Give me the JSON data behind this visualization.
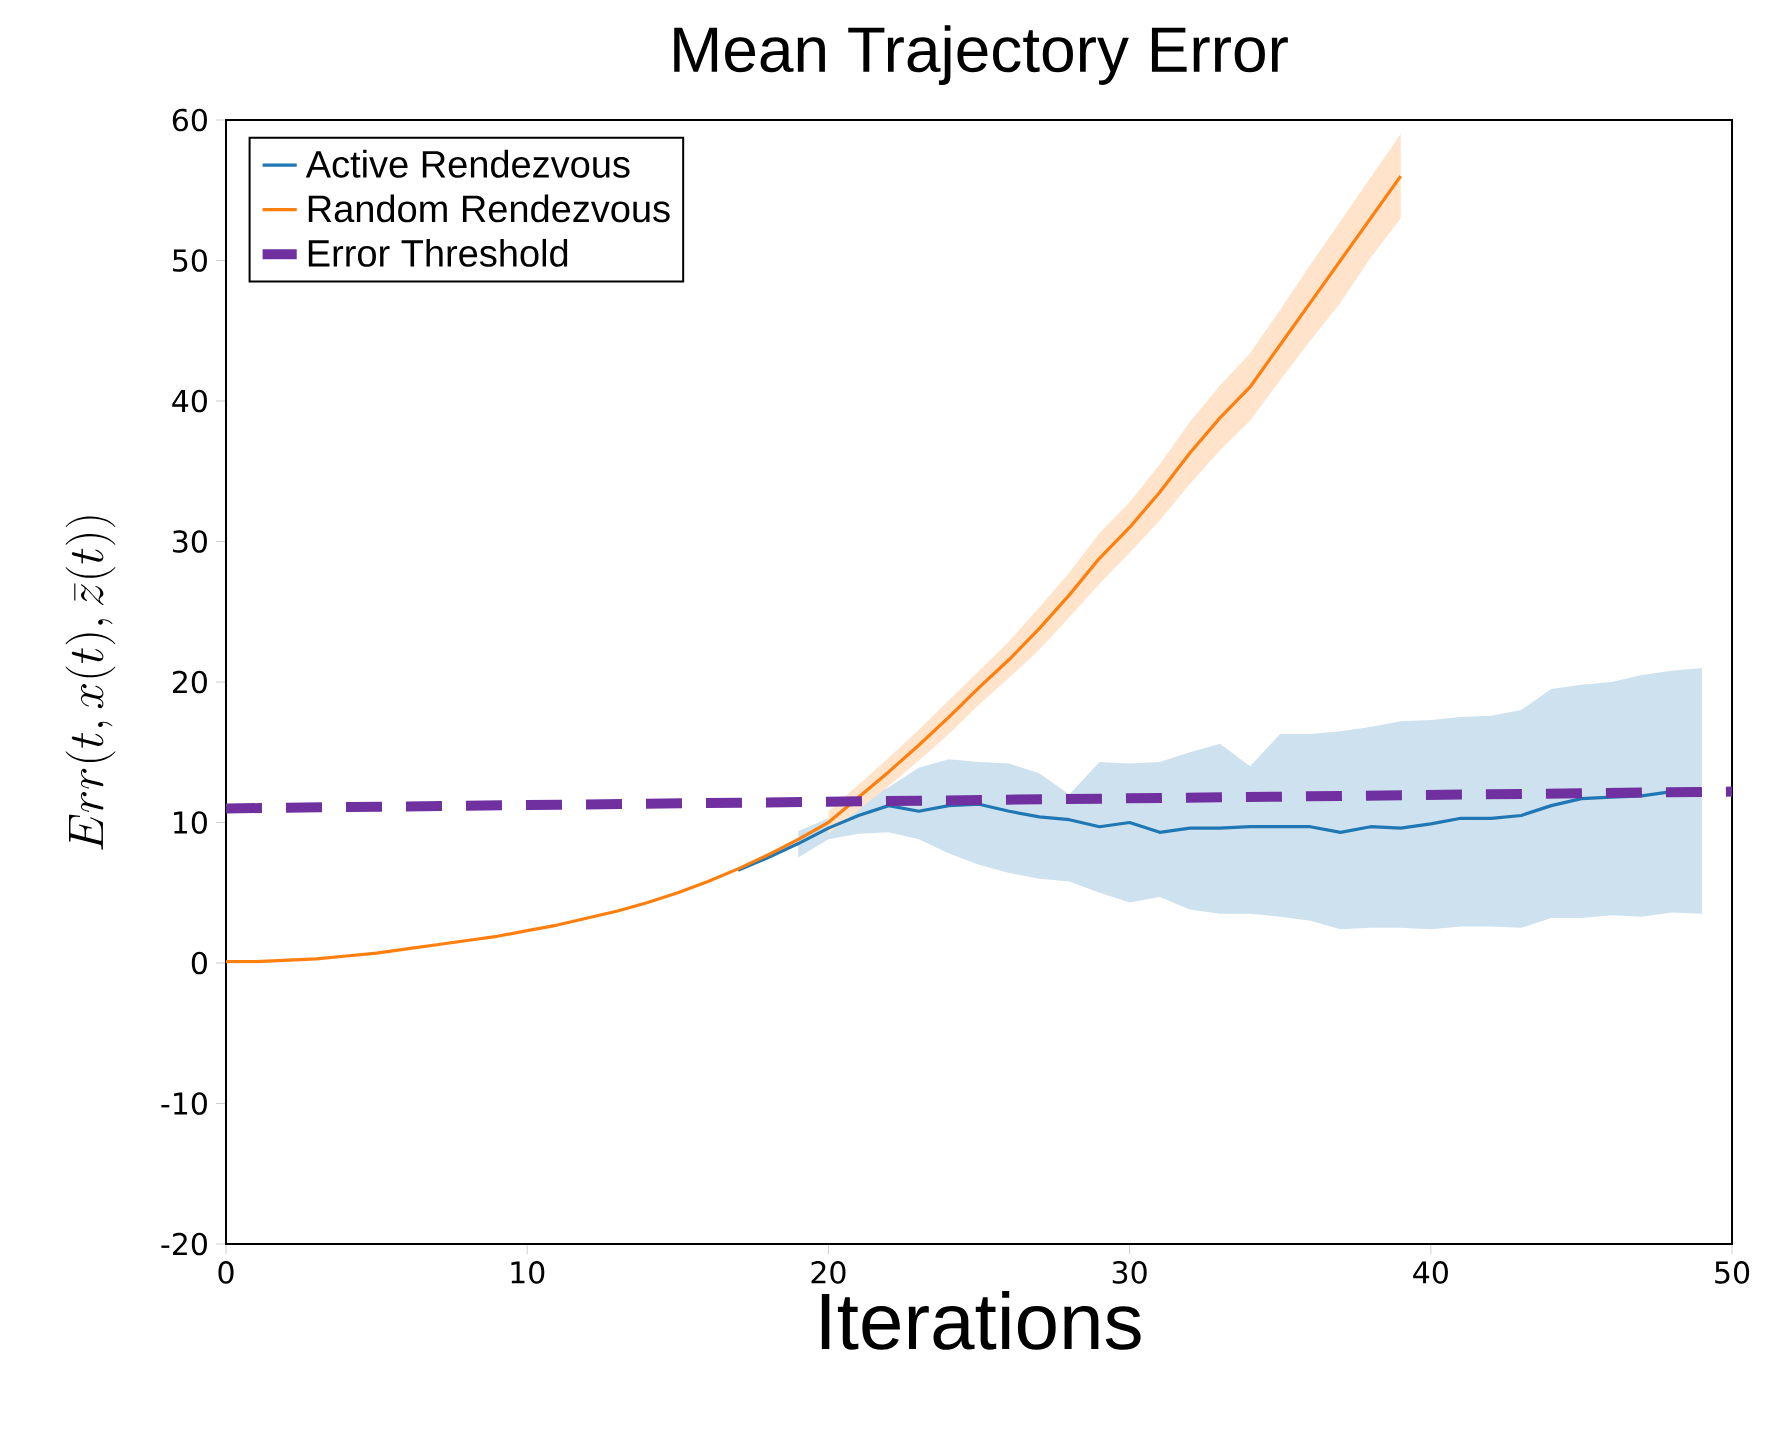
{
  "chart_data": {
    "type": "line",
    "title": "Mean Trajectory Error",
    "xlabel": "Iterations",
    "ylabel": "Err(t,x(t),\\bar{z}(t))",
    "xlim": [
      0,
      50
    ],
    "ylim": [
      -20,
      60
    ],
    "xticks": [
      0,
      10,
      20,
      30,
      40,
      50
    ],
    "yticks": [
      -20,
      -10,
      0,
      10,
      20,
      30,
      40,
      50,
      60
    ],
    "grid": false,
    "legend": "top left",
    "series": [
      {
        "name": "Active Rendezvous",
        "color": "#1f77b4",
        "line_style": "solid",
        "x": [
          17,
          18,
          19,
          20,
          21,
          22,
          23,
          24,
          25,
          26,
          27,
          28,
          29,
          30,
          31,
          32,
          33,
          34,
          35,
          36,
          37,
          38,
          39,
          40,
          41,
          42,
          43,
          44,
          45,
          46,
          47,
          48,
          49
        ],
        "values": [
          6.6,
          7.5,
          8.5,
          9.6,
          10.5,
          11.2,
          10.8,
          11.2,
          11.3,
          10.8,
          10.4,
          10.2,
          9.7,
          10.0,
          9.3,
          9.6,
          9.6,
          9.7,
          9.7,
          9.7,
          9.3,
          9.7,
          9.6,
          9.9,
          10.3,
          10.3,
          10.5,
          11.2,
          11.7,
          11.8,
          11.9,
          12.2,
          12.3
        ],
        "lower": [
          null,
          null,
          7.5,
          8.8,
          9.2,
          9.3,
          8.8,
          7.8,
          7.0,
          6.4,
          6.0,
          5.8,
          5.0,
          4.3,
          4.7,
          3.8,
          3.5,
          3.5,
          3.3,
          3.0,
          2.4,
          2.5,
          2.5,
          2.4,
          2.6,
          2.6,
          2.5,
          3.2,
          3.2,
          3.4,
          3.3,
          3.6,
          3.5
        ],
        "upper": [
          null,
          null,
          9.4,
          10.3,
          11.5,
          12.5,
          13.9,
          14.5,
          14.3,
          14.2,
          13.5,
          12.0,
          14.3,
          14.2,
          14.3,
          15.0,
          15.6,
          14.0,
          16.3,
          16.3,
          16.5,
          16.8,
          17.2,
          17.3,
          17.5,
          17.6,
          18.0,
          19.5,
          19.8,
          20.0,
          20.5,
          20.8,
          21.0
        ]
      },
      {
        "name": "Random Rendezvous",
        "color": "#ff7f0e",
        "line_style": "solid",
        "x": [
          0,
          1,
          2,
          3,
          4,
          5,
          6,
          7,
          8,
          9,
          10,
          11,
          12,
          13,
          14,
          15,
          16,
          17,
          18,
          19,
          20,
          21,
          22,
          23,
          24,
          25,
          26,
          27,
          28,
          29,
          30,
          31,
          32,
          33,
          34,
          35,
          36,
          37,
          38,
          39
        ],
        "values": [
          0.1,
          0.1,
          0.2,
          0.3,
          0.5,
          0.7,
          1.0,
          1.3,
          1.6,
          1.9,
          2.3,
          2.7,
          3.2,
          3.7,
          4.3,
          5.0,
          5.8,
          6.7,
          7.7,
          8.8,
          10.0,
          11.8,
          13.6,
          15.5,
          17.5,
          19.6,
          21.6,
          23.8,
          26.2,
          28.8,
          31.0,
          33.5,
          36.3,
          38.8,
          41.0,
          44.0,
          47.0,
          50.0,
          53.0,
          56.0
        ],
        "lower": [
          null,
          null,
          null,
          null,
          null,
          null,
          null,
          null,
          null,
          null,
          null,
          null,
          null,
          null,
          null,
          null,
          null,
          null,
          null,
          null,
          9.2,
          10.9,
          12.6,
          14.4,
          16.3,
          18.4,
          20.3,
          22.3,
          24.6,
          27.0,
          29.2,
          31.5,
          34.1,
          36.5,
          38.6,
          41.5,
          44.3,
          47.0,
          50.2,
          53.0
        ],
        "upper": [
          null,
          null,
          null,
          null,
          null,
          null,
          null,
          null,
          null,
          null,
          null,
          null,
          null,
          null,
          null,
          null,
          null,
          null,
          null,
          null,
          10.8,
          12.7,
          14.6,
          16.6,
          18.7,
          20.8,
          22.9,
          25.3,
          27.8,
          30.6,
          32.8,
          35.5,
          38.5,
          41.1,
          43.4,
          46.5,
          49.7,
          52.8,
          55.9,
          59.0
        ]
      },
      {
        "name": "Error Threshold",
        "color": "#7030a0",
        "line_style": "dashed",
        "x": [
          0,
          50
        ],
        "values": [
          11.0,
          12.2
        ]
      }
    ]
  }
}
